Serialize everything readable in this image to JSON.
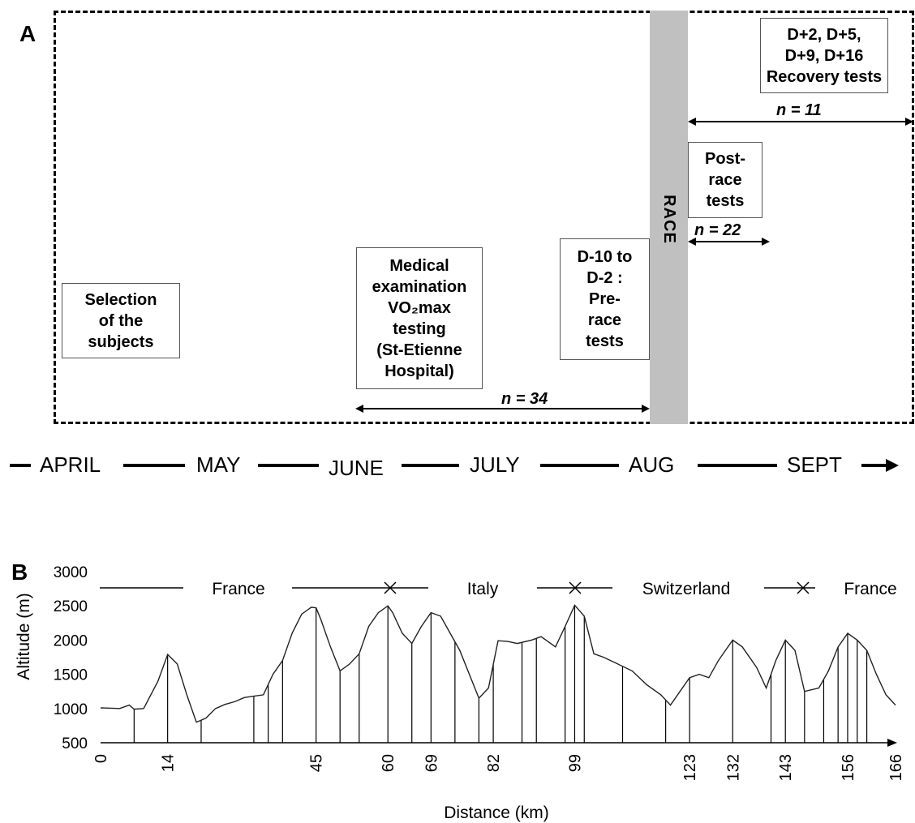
{
  "panel_a": {
    "label": "A",
    "race_label": "RACE",
    "boxes": {
      "selection": [
        "Selection",
        "of the",
        "subjects"
      ],
      "medical": [
        "Medical",
        "examination",
        "VO₂max",
        "testing",
        "(St-Etienne",
        "Hospital)"
      ],
      "prerace": [
        "D-10 to",
        "D-2 :",
        "Pre-",
        "race",
        "tests"
      ],
      "postrace": [
        "Post-",
        "race",
        "tests"
      ],
      "recovery": [
        "D+2, D+5,",
        "D+9, D+16",
        "Recovery tests"
      ]
    },
    "n_labels": {
      "n34": "n = 34",
      "n22": "n = 22",
      "n11": "n = 11"
    },
    "months": [
      "APRIL",
      "MAY",
      "JUNE",
      "JULY",
      "AUG",
      "SEPT"
    ]
  },
  "panel_b": {
    "label": "B",
    "countries": [
      "France",
      "Italy",
      "Switzerland",
      "France"
    ],
    "chart_data": {
      "type": "line",
      "title": "",
      "xlabel": "Distance (km)",
      "ylabel": "Altitude (m)",
      "xlim": [
        0,
        166
      ],
      "ylim": [
        500,
        3000
      ],
      "yticks": [
        500,
        1000,
        1500,
        2000,
        2500,
        3000
      ],
      "xticks": [
        0,
        14,
        45,
        60,
        69,
        82,
        99,
        123,
        132,
        143,
        156,
        166
      ],
      "series": [
        {
          "x": [
            0,
            4,
            6,
            7,
            9,
            12,
            14,
            16,
            18,
            20,
            22,
            24,
            26,
            28,
            30,
            32,
            34,
            36,
            38,
            40,
            42,
            44,
            45,
            46,
            48,
            50,
            52,
            54,
            56,
            58,
            60,
            61,
            63,
            65,
            67,
            69,
            71,
            73,
            75,
            77,
            79,
            81,
            83,
            85,
            87,
            90,
            92,
            95,
            97,
            99,
            101,
            103,
            105,
            108,
            111,
            114,
            117,
            119,
            121,
            123,
            125,
            127,
            129,
            132,
            134,
            137,
            139,
            141,
            143,
            145,
            147,
            150,
            152,
            154,
            156,
            158,
            160,
            162,
            164,
            166
          ],
          "y": [
            1010,
            1000,
            1050,
            990,
            1000,
            1400,
            1790,
            1650,
            1200,
            800,
            860,
            1000,
            1060,
            1100,
            1160,
            1180,
            1200,
            1500,
            1700,
            2100,
            2380,
            2480,
            2470,
            2300,
            1900,
            1550,
            1650,
            1800,
            2200,
            2400,
            2500,
            2400,
            2100,
            1950,
            2200,
            2400,
            2350,
            2100,
            1850,
            1500,
            1150,
            1300,
            1990,
            1980,
            1950,
            2000,
            2050,
            1900,
            2200,
            2510,
            2350,
            1800,
            1750,
            1650,
            1550,
            1350,
            1200,
            1050,
            1250,
            1450,
            1500,
            1450,
            1700,
            2000,
            1900,
            1600,
            1300,
            1700,
            2000,
            1850,
            1250,
            1300,
            1550,
            1900,
            2100,
            2000,
            1850,
            1500,
            1200,
            1050
          ]
        }
      ],
      "checkpoints": [
        7,
        14,
        21,
        32,
        35,
        38,
        45,
        50,
        54,
        60,
        65,
        69,
        74,
        79,
        82,
        88,
        91,
        97,
        99,
        101,
        109,
        118,
        123,
        132,
        140,
        143,
        147,
        151,
        154,
        156,
        158,
        160
      ]
    }
  }
}
